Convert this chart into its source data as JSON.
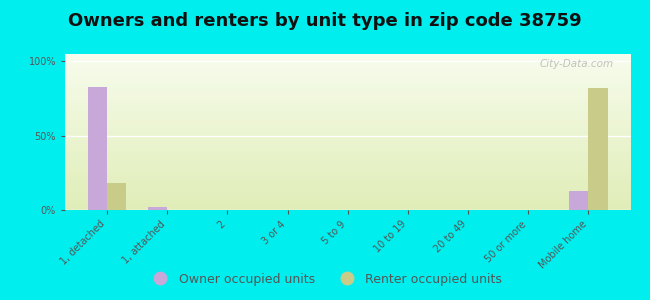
{
  "title": "Owners and renters by unit type in zip code 38759",
  "categories": [
    "1, detached",
    "1, attached",
    "2",
    "3 or 4",
    "5 to 9",
    "10 to 19",
    "20 to 49",
    "50 or more",
    "Mobile home"
  ],
  "owner_values": [
    83,
    2,
    0,
    0,
    0,
    0,
    0,
    0,
    13
  ],
  "renter_values": [
    18,
    0,
    0,
    0,
    0,
    0,
    0,
    0,
    82
  ],
  "owner_color": "#c8a8d8",
  "renter_color": "#c8cc88",
  "background_color": "#00eeee",
  "plot_bg_color": "#f2f5e0",
  "ylabel_ticks": [
    "0%",
    "50%",
    "100%"
  ],
  "ytick_vals": [
    0,
    50,
    100
  ],
  "ylim": [
    0,
    105
  ],
  "bar_width": 0.32,
  "legend_owner": "Owner occupied units",
  "legend_renter": "Renter occupied units",
  "watermark": "City-Data.com",
  "title_fontsize": 13,
  "tick_fontsize": 7,
  "legend_fontsize": 9,
  "grid_color": "#ffffff",
  "text_color": "#555555"
}
